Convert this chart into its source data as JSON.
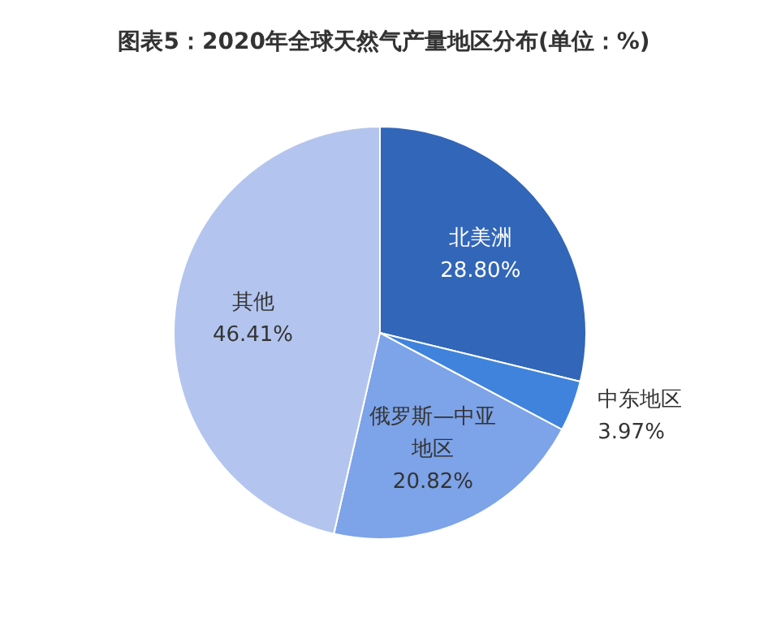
{
  "chart_data": {
    "type": "pie",
    "title": "图表5：2020年全球天然气产量地区分布(单位：%)",
    "categories": [
      "北美洲",
      "中东地区",
      "俄罗斯—中亚地区",
      "其他"
    ],
    "values": [
      28.8,
      3.97,
      20.82,
      46.41
    ],
    "value_labels": [
      "28.80%",
      "3.97%",
      "20.82%",
      "46.41%"
    ],
    "colors": [
      "#3266b8",
      "#3f83dc",
      "#7da3e8",
      "#b3c5ee"
    ]
  }
}
